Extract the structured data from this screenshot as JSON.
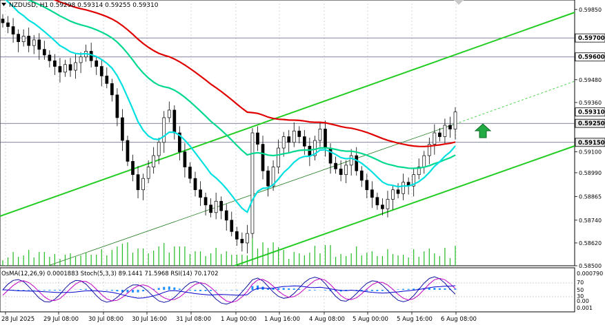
{
  "header": {
    "symbol_label": "NZDUSD, H1",
    "ohlc": "0.59298 0.59314 0.59255 0.59310"
  },
  "price_axis": {
    "ticks": [
      "0.59850",
      "0.59700",
      "0.59600",
      "0.59480",
      "0.59360",
      "0.59250",
      "0.59150",
      "0.59100",
      "0.58990",
      "0.58865",
      "0.58740",
      "0.58620",
      "0.58500"
    ],
    "badges": [
      {
        "label": "0.59700",
        "bg": "#ffffff",
        "fg": "#000000"
      },
      {
        "label": "0.59600",
        "bg": "#ffffff",
        "fg": "#000000"
      },
      {
        "label": "0.59310",
        "bg": "#ffffff",
        "fg": "#000000"
      },
      {
        "label": "0.59250",
        "bg": "#e8e8e8",
        "fg": "#000000"
      },
      {
        "label": "0.59150",
        "bg": "#e8e8e8",
        "fg": "#000000"
      }
    ]
  },
  "time_axis": {
    "labels": [
      "28 Jul 2025",
      "29 Jul 08:00",
      "30 Jul 08:00",
      "30 Jul 16:00",
      "31 Jul 08:00",
      "1 Aug 00:00",
      "1 Aug 16:00",
      "4 Aug 08:00",
      "5 Aug 00:00",
      "5 Aug 16:00",
      "6 Aug 08:00"
    ]
  },
  "indicator": {
    "label": "OsMA(12,26,9) 0.0001883  Stoch(5,3,3) 89.1441 71.5968  RSI(14) 70.1702",
    "axis_labels": [
      "0.000790",
      "70",
      "50",
      "30",
      "0.00",
      "0.001"
    ]
  },
  "colors": {
    "ema200": "#e00000",
    "ema144": "#00d890",
    "ema50": "#00e0e0",
    "channel": "#22cc22",
    "candle": "#000000",
    "volume": "#22bb22",
    "osma": "#1e90ff",
    "stoch_main": "#1010a0",
    "stoch_signal": "#c000c0",
    "rsi": "#0000cc",
    "arrow": "#22aa44"
  },
  "chart_data": {
    "type": "candlestick",
    "symbol": "NZDUSD",
    "timeframe": "H1",
    "last_ohlc": {
      "open": 0.59298,
      "high": 0.59314,
      "low": 0.59255,
      "close": 0.5931
    },
    "price_range": [
      0.585,
      0.599
    ],
    "close_series": [
      0.5978,
      0.5976,
      0.5972,
      0.5968,
      0.5971,
      0.5966,
      0.5969,
      0.5964,
      0.5961,
      0.5958,
      0.5955,
      0.5952,
      0.5956,
      0.5953,
      0.5957,
      0.596,
      0.5963,
      0.5958,
      0.5955,
      0.595,
      0.5946,
      0.594,
      0.5928,
      0.5916,
      0.5905,
      0.5898,
      0.589,
      0.5896,
      0.5902,
      0.5908,
      0.5915,
      0.5928,
      0.5932,
      0.592,
      0.591,
      0.5902,
      0.5896,
      0.589,
      0.5886,
      0.5882,
      0.5878,
      0.5884,
      0.5879,
      0.5874,
      0.5868,
      0.5864,
      0.5862,
      0.5867,
      0.592,
      0.5914,
      0.59,
      0.5892,
      0.5902,
      0.5912,
      0.5918,
      0.5915,
      0.5921,
      0.5918,
      0.5913,
      0.5908,
      0.5916,
      0.5922,
      0.5912,
      0.5904,
      0.5901,
      0.5898,
      0.5903,
      0.5908,
      0.59,
      0.5895,
      0.589,
      0.5886,
      0.5882,
      0.588,
      0.5885,
      0.589,
      0.5888,
      0.5894,
      0.5892,
      0.5898,
      0.5902,
      0.5908,
      0.5914,
      0.592,
      0.5918,
      0.5924,
      0.5922,
      0.5931
    ],
    "indicators": [
      {
        "name": "EMA200",
        "color": "#e00000"
      },
      {
        "name": "EMA144",
        "color": "#00d890"
      },
      {
        "name": "EMA50",
        "color": "#00e0e0"
      }
    ],
    "levels": [
      0.597,
      0.596,
      0.5925,
      0.5915
    ],
    "osma_value": 0.0001883,
    "stoch": [
      89.1441,
      71.5968
    ],
    "rsi": 70.1702
  }
}
